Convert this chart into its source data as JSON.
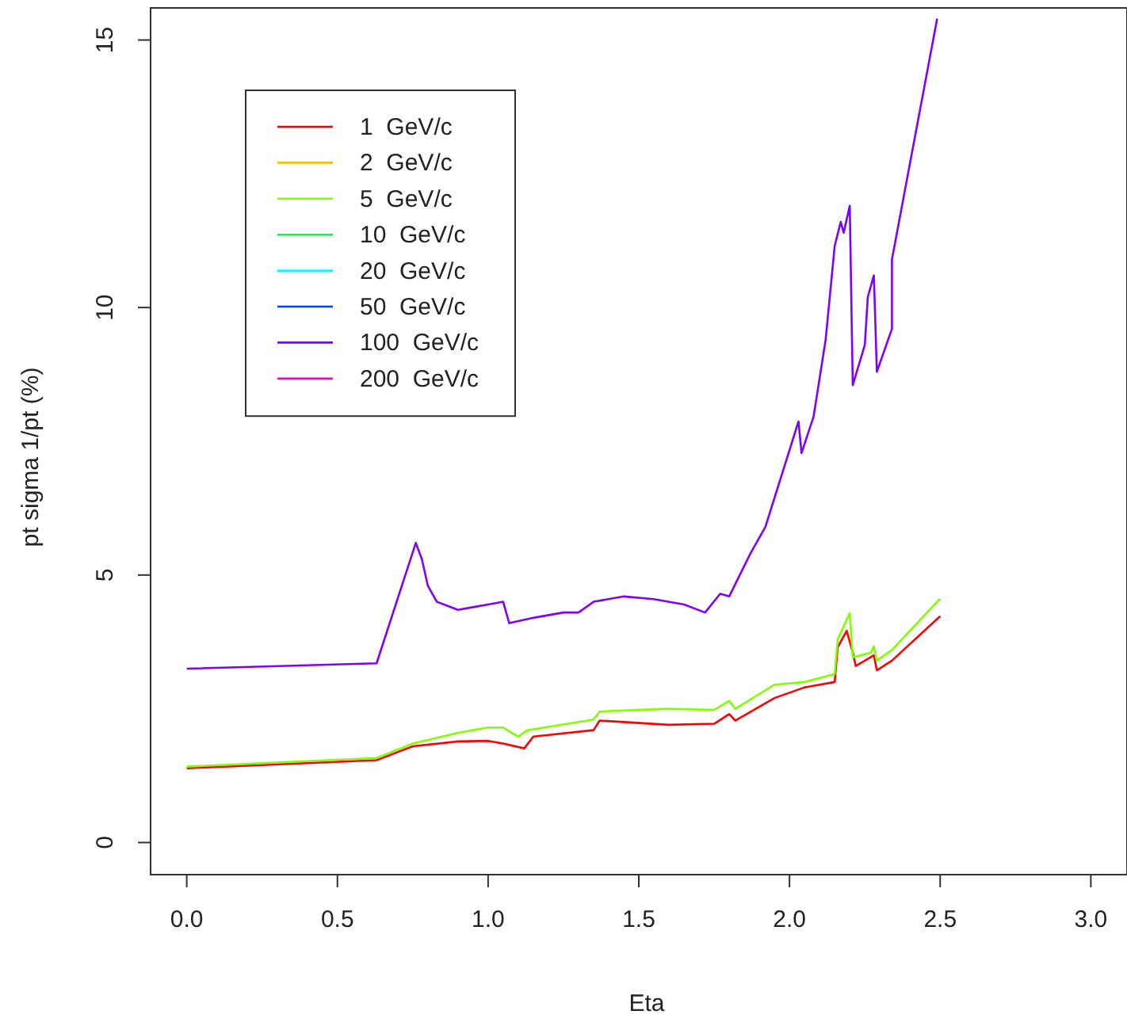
{
  "chart_data": {
    "type": "line",
    "xlabel": "Eta",
    "ylabel": "pt sigma 1/pt (%)",
    "xlim": [
      -0.12,
      3.12
    ],
    "ylim": [
      -0.6,
      15.6
    ],
    "xticks": [
      {
        "value": 0,
        "label": "0.0"
      },
      {
        "value": 0.5,
        "label": "0.5"
      },
      {
        "value": 1,
        "label": "1.0"
      },
      {
        "value": 1.5,
        "label": "1.5"
      },
      {
        "value": 2,
        "label": "2.0"
      },
      {
        "value": 2.5,
        "label": "2.5"
      },
      {
        "value": 3,
        "label": "3.0"
      }
    ],
    "yticks": [
      0,
      5,
      10,
      15
    ],
    "legend": "top left",
    "series": [
      {
        "name": "1  GeV/c",
        "color": "#ff0000",
        "x": [
          0,
          0.63,
          0.75,
          0.9,
          1.0,
          1.05,
          1.12,
          1.15,
          1.35,
          1.37,
          1.6,
          1.75,
          1.8,
          1.82,
          1.95,
          2.05,
          2.15,
          2.16,
          2.19,
          2.21,
          2.22,
          2.28,
          2.29,
          2.34,
          2.5
        ],
        "values": [
          1.39,
          1.54,
          1.8,
          1.89,
          1.9,
          1.85,
          1.76,
          1.98,
          2.1,
          2.28,
          2.2,
          2.22,
          2.4,
          2.28,
          2.7,
          2.9,
          3.0,
          3.65,
          3.96,
          3.55,
          3.3,
          3.5,
          3.22,
          3.4,
          4.23
        ]
      },
      {
        "name": "2  GeV/c",
        "color": "#ffbf00"
      },
      {
        "name": "5  GeV/c",
        "color": "#80ff00",
        "x": [
          0,
          0.63,
          0.75,
          0.9,
          1.0,
          1.05,
          1.1,
          1.13,
          1.35,
          1.37,
          1.6,
          1.75,
          1.8,
          1.82,
          1.95,
          2.05,
          2.15,
          2.16,
          2.2,
          2.21,
          2.27,
          2.28,
          2.29,
          2.34,
          2.5
        ],
        "values": [
          1.42,
          1.58,
          1.85,
          2.05,
          2.15,
          2.15,
          1.98,
          2.1,
          2.3,
          2.45,
          2.5,
          2.48,
          2.65,
          2.5,
          2.95,
          3.0,
          3.15,
          3.8,
          4.29,
          3.46,
          3.55,
          3.67,
          3.4,
          3.6,
          4.56
        ]
      },
      {
        "name": "10  GeV/c",
        "color": "#00ff40"
      },
      {
        "name": "20  GeV/c",
        "color": "#00ffff"
      },
      {
        "name": "50  GeV/c",
        "color": "#0040ff"
      },
      {
        "name": "100  GeV/c",
        "color": "#8000ff",
        "x": [
          0,
          0.63,
          0.76,
          0.78,
          0.8,
          0.83,
          0.9,
          0.95,
          1.0,
          1.05,
          1.07,
          1.15,
          1.25,
          1.3,
          1.35,
          1.45,
          1.55,
          1.65,
          1.72,
          1.77,
          1.8,
          1.87,
          1.92,
          2.03,
          2.04,
          2.08,
          2.12,
          2.15,
          2.17,
          2.18,
          2.2,
          2.21,
          2.25,
          2.26,
          2.28,
          2.29,
          2.34,
          2.34,
          2.49
        ],
        "values": [
          3.25,
          3.35,
          5.6,
          5.3,
          4.8,
          4.5,
          4.35,
          4.4,
          4.45,
          4.5,
          4.1,
          4.2,
          4.3,
          4.3,
          4.5,
          4.6,
          4.55,
          4.45,
          4.3,
          4.65,
          4.6,
          5.4,
          5.9,
          7.87,
          7.28,
          7.96,
          9.4,
          11.15,
          11.6,
          11.4,
          11.9,
          8.55,
          9.3,
          10.2,
          10.6,
          8.8,
          9.6,
          10.9,
          15.4
        ]
      },
      {
        "name": "200  GeV/c",
        "color": "#ff00bf"
      }
    ]
  }
}
